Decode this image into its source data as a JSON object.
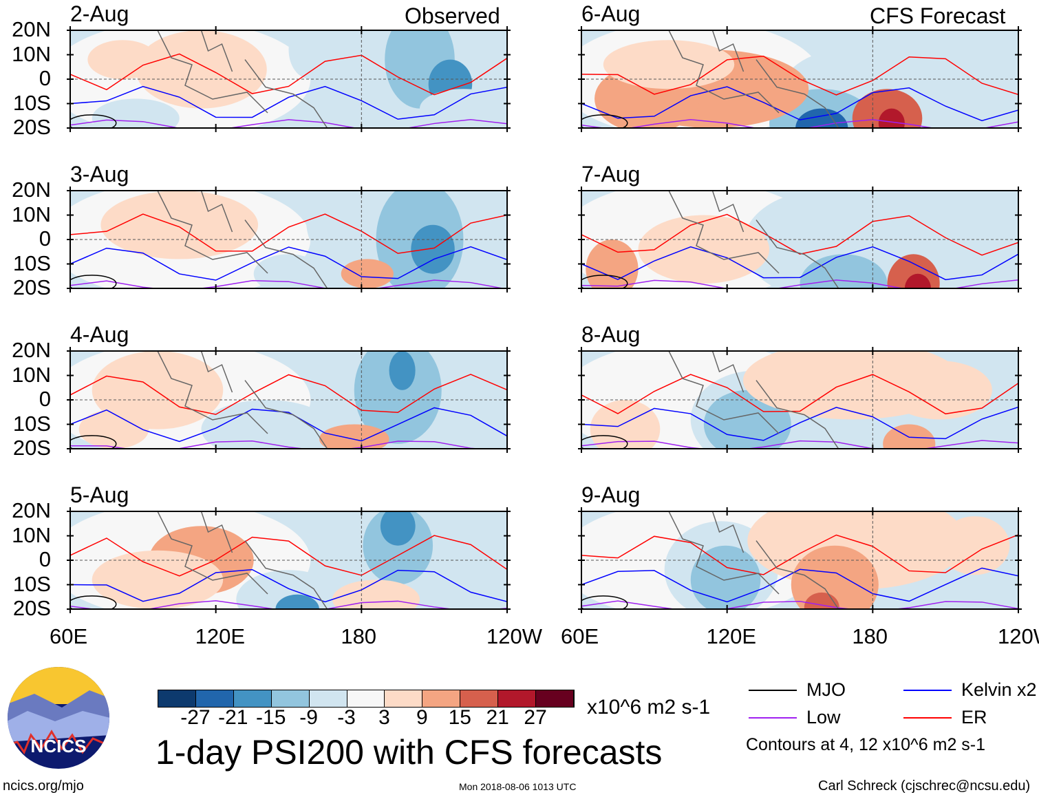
{
  "chart_data": {
    "type": "heatmap",
    "title": "1-day PSI200 with CFS forecasts",
    "units": "x10^6 m2 s-1",
    "column_titles": [
      "Observed",
      "CFS Forecast"
    ],
    "panels": [
      {
        "date": "2-Aug",
        "kind": "observed"
      },
      {
        "date": "3-Aug",
        "kind": "observed"
      },
      {
        "date": "4-Aug",
        "kind": "observed"
      },
      {
        "date": "5-Aug",
        "kind": "observed"
      },
      {
        "date": "6-Aug",
        "kind": "forecast"
      },
      {
        "date": "7-Aug",
        "kind": "forecast"
      },
      {
        "date": "8-Aug",
        "kind": "forecast"
      },
      {
        "date": "9-Aug",
        "kind": "forecast"
      }
    ],
    "y_ticks": [
      "20N",
      "10N",
      "0",
      "10S",
      "20S"
    ],
    "x_ticks": [
      "60E",
      "120E",
      "180",
      "120W"
    ],
    "colorbar": {
      "ticks": [
        "-27",
        "-21",
        "-15",
        "-9",
        "-3",
        "3",
        "9",
        "15",
        "21",
        "27"
      ],
      "colors": [
        "#0d3a6e",
        "#2166ac",
        "#4393c3",
        "#92c5de",
        "#d1e5f0",
        "#f7f7f7",
        "#fddbc7",
        "#f4a582",
        "#d6604d",
        "#b2182b",
        "#67001f"
      ]
    },
    "legend": [
      {
        "label": "MJO",
        "color": "#000000"
      },
      {
        "label": "Kelvin x2",
        "color": "#0000ff"
      },
      {
        "label": "Low",
        "color": "#a020f0"
      },
      {
        "label": "ER",
        "color": "#ff0000"
      }
    ],
    "contour_note": "Contours at 4, 12 x10^6 m2 s-1"
  },
  "footer": {
    "logo_text": "NCICS",
    "url": "ncics.org/mjo",
    "timestamp": "Mon 2018-08-06 1013 UTC",
    "author": "Carl Schreck (cjschrec@ncsu.edu)"
  }
}
